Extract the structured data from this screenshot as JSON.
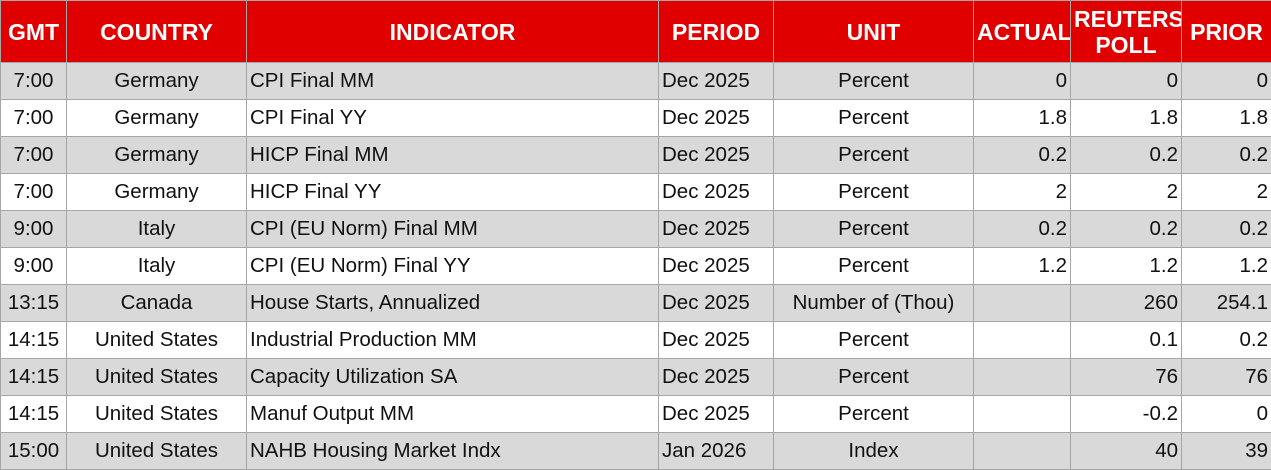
{
  "headers": {
    "gmt": "GMT",
    "country": "COUNTRY",
    "indicator": "INDICATOR",
    "period": "PERIOD",
    "unit": "UNIT",
    "actual": "ACTUAL",
    "poll": "REUTERS POLL",
    "prior": "PRIOR"
  },
  "rows": [
    {
      "gmt": "7:00",
      "country": "Germany",
      "indicator": "CPI Final MM",
      "period": "Dec 2025",
      "unit": "Percent",
      "actual": "0",
      "poll": "0",
      "prior": "0"
    },
    {
      "gmt": "7:00",
      "country": "Germany",
      "indicator": "CPI Final YY",
      "period": "Dec 2025",
      "unit": "Percent",
      "actual": "1.8",
      "poll": "1.8",
      "prior": "1.8"
    },
    {
      "gmt": "7:00",
      "country": "Germany",
      "indicator": "HICP Final MM",
      "period": "Dec 2025",
      "unit": "Percent",
      "actual": "0.2",
      "poll": "0.2",
      "prior": "0.2"
    },
    {
      "gmt": "7:00",
      "country": "Germany",
      "indicator": "HICP Final YY",
      "period": "Dec 2025",
      "unit": "Percent",
      "actual": "2",
      "poll": "2",
      "prior": "2"
    },
    {
      "gmt": "9:00",
      "country": "Italy",
      "indicator": "CPI (EU Norm) Final MM",
      "period": "Dec 2025",
      "unit": "Percent",
      "actual": "0.2",
      "poll": "0.2",
      "prior": "0.2"
    },
    {
      "gmt": "9:00",
      "country": "Italy",
      "indicator": "CPI (EU Norm) Final YY",
      "period": "Dec 2025",
      "unit": "Percent",
      "actual": "1.2",
      "poll": "1.2",
      "prior": "1.2"
    },
    {
      "gmt": "13:15",
      "country": "Canada",
      "indicator": "House Starts, Annualized",
      "period": "Dec 2025",
      "unit": "Number of (Thou)",
      "actual": "",
      "poll": "260",
      "prior": "254.1"
    },
    {
      "gmt": "14:15",
      "country": "United States",
      "indicator": "Industrial Production MM",
      "period": "Dec 2025",
      "unit": "Percent",
      "actual": "",
      "poll": "0.1",
      "prior": "0.2"
    },
    {
      "gmt": "14:15",
      "country": "United States",
      "indicator": "Capacity Utilization SA",
      "period": "Dec 2025",
      "unit": "Percent",
      "actual": "",
      "poll": "76",
      "prior": "76"
    },
    {
      "gmt": "14:15",
      "country": "United States",
      "indicator": "Manuf Output MM",
      "period": "Dec 2025",
      "unit": "Percent",
      "actual": "",
      "poll": "-0.2",
      "prior": "0"
    },
    {
      "gmt": "15:00",
      "country": "United States",
      "indicator": "NAHB Housing Market Indx",
      "period": "Jan 2026",
      "unit": "Index",
      "actual": "",
      "poll": "40",
      "prior": "39"
    }
  ]
}
